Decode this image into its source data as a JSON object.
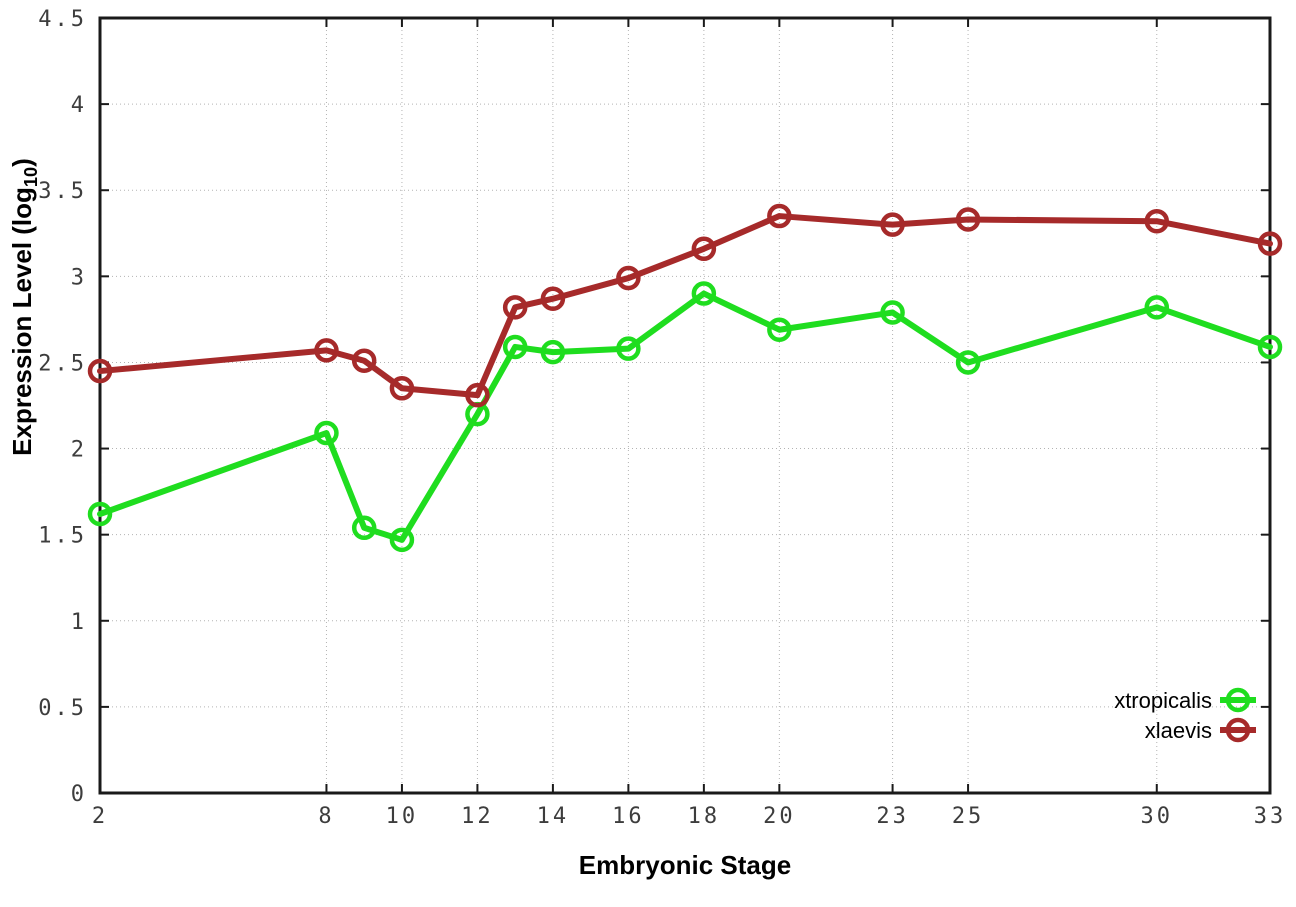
{
  "chart_data": {
    "type": "line",
    "title": "",
    "xlabel": "Embryonic Stage",
    "ylabel": {
      "pre": "Expression Level (log",
      "sub": "10",
      "post": ")"
    },
    "x": [
      2,
      8,
      9,
      10,
      12,
      13,
      14,
      16,
      18,
      20,
      23,
      25,
      30,
      33
    ],
    "series": [
      {
        "name": "xtropicalis",
        "color": "#1fdd1f",
        "values": [
          1.62,
          2.09,
          1.54,
          1.47,
          2.2,
          2.59,
          2.56,
          2.58,
          2.9,
          2.69,
          2.79,
          2.5,
          2.82,
          2.59
        ]
      },
      {
        "name": "xlaevis",
        "color": "#a62a2a",
        "values": [
          2.45,
          2.57,
          2.51,
          2.35,
          2.31,
          2.82,
          2.87,
          2.99,
          3.16,
          3.35,
          3.3,
          3.33,
          3.32,
          3.19
        ]
      }
    ],
    "x_ticks": [
      2,
      8,
      10,
      12,
      14,
      16,
      18,
      20,
      23,
      25,
      30,
      33
    ],
    "y_ticks": [
      0,
      0.5,
      1,
      1.5,
      2,
      2.5,
      3,
      3.5,
      4,
      4.5
    ],
    "xlim": [
      2,
      33
    ],
    "ylim": [
      0,
      4.5
    ],
    "grid": true,
    "legend_position": "bottom-right",
    "marker": "open-circle",
    "colors": {
      "border": "#1a1a1a",
      "grid": "#b3b3b3",
      "tick_label": "#3d3d3d",
      "background": "#ffffff"
    }
  }
}
